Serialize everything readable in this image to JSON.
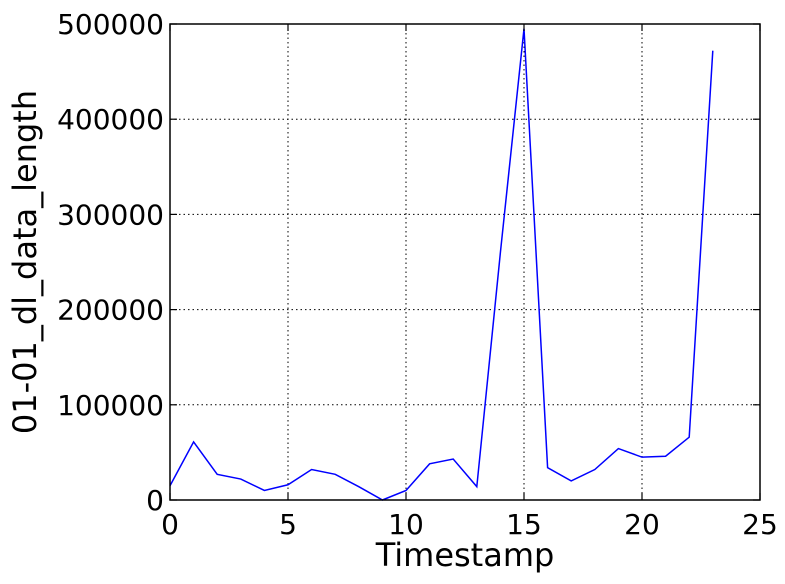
{
  "chart_data": {
    "type": "line",
    "title": "",
    "xlabel": "Timestamp",
    "ylabel": "01-01_dl_data_length",
    "xlim": [
      0,
      25
    ],
    "ylim": [
      0,
      500000
    ],
    "x_ticks": [
      0,
      5,
      10,
      15,
      20,
      25
    ],
    "y_ticks": [
      0,
      100000,
      200000,
      300000,
      400000,
      500000
    ],
    "grid": true,
    "legend": "none",
    "series": [
      {
        "color": "#0000ff",
        "x": [
          0,
          1,
          2,
          3,
          4,
          5,
          6,
          7,
          8,
          9,
          10,
          11,
          12,
          13,
          14,
          15,
          16,
          17,
          18,
          19,
          20,
          21,
          22,
          23
        ],
        "y": [
          15000,
          61000,
          27000,
          22000,
          10000,
          16000,
          32000,
          27000,
          14000,
          0,
          10000,
          38000,
          43000,
          14000,
          260000,
          495000,
          34000,
          20000,
          32000,
          54000,
          45000,
          46000,
          66000,
          472000
        ]
      }
    ]
  }
}
